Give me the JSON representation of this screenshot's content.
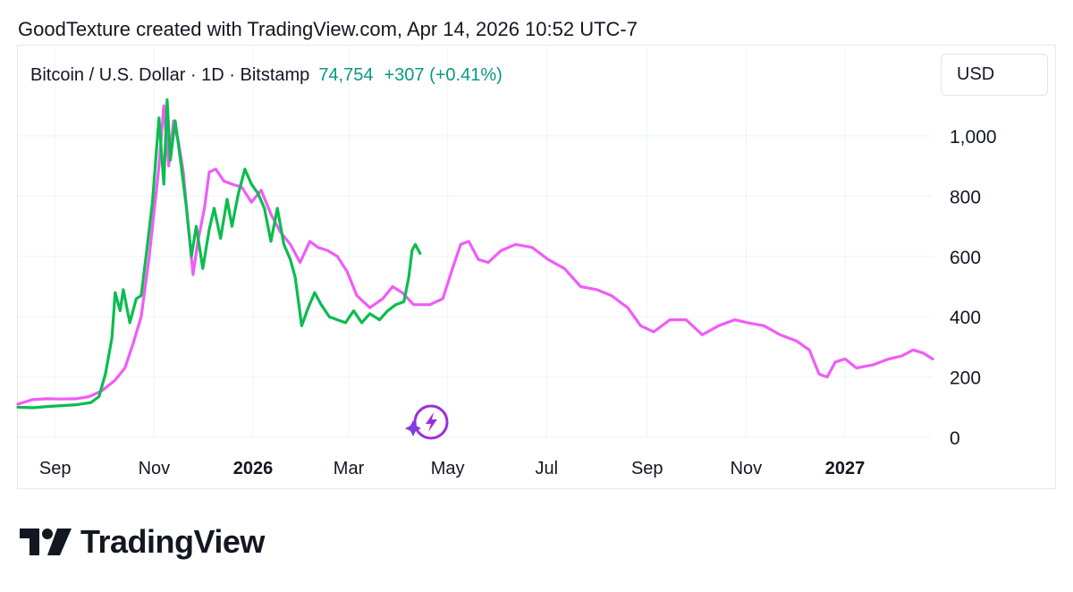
{
  "header": {
    "text": "GoodTexture created with TradingView.com, Apr 14, 2026 10:52 UTC-7"
  },
  "symbol": {
    "name": "Bitcoin / U.S. Dollar · 1D · Bitstamp",
    "price": "74,754",
    "change": "+307 (+0.41%)"
  },
  "currency_button": {
    "label": "USD"
  },
  "logo": {
    "text": "TradingView",
    "icon": "tradingview-logo-icon"
  },
  "colors": {
    "series_green": "#0bbd4e",
    "series_magenta": "#f05cf8",
    "up_text": "#089981",
    "grid": "#f0f3fa"
  },
  "chart_data": {
    "type": "line",
    "title": "",
    "xlabel": "",
    "ylabel": "",
    "ylim": [
      0,
      1150
    ],
    "yticks": [
      0,
      200,
      400,
      600,
      800,
      1000
    ],
    "ytick_labels": [
      "0",
      "200",
      "400",
      "600",
      "800",
      "1,000"
    ],
    "xlim": [
      "2025-08-09",
      "2027-02-24"
    ],
    "xticks": [
      {
        "date": "2025-09-01",
        "label": "Sep",
        "bold": false
      },
      {
        "date": "2025-11-01",
        "label": "Nov",
        "bold": false
      },
      {
        "date": "2026-01-01",
        "label": "2026",
        "bold": true
      },
      {
        "date": "2026-03-01",
        "label": "Mar",
        "bold": false
      },
      {
        "date": "2026-05-01",
        "label": "May",
        "bold": false
      },
      {
        "date": "2026-07-01",
        "label": "Jul",
        "bold": false
      },
      {
        "date": "2026-09-01",
        "label": "Sep",
        "bold": false
      },
      {
        "date": "2026-11-01",
        "label": "Nov",
        "bold": false
      },
      {
        "date": "2027-01-01",
        "label": "2027",
        "bold": true
      }
    ],
    "grid": true,
    "legend": "none",
    "series": [
      {
        "color": "#0bbd4e",
        "points": [
          [
            "2025-08-09",
            100
          ],
          [
            "2025-08-18",
            98
          ],
          [
            "2025-08-27",
            102
          ],
          [
            "2025-09-05",
            105
          ],
          [
            "2025-09-14",
            108
          ],
          [
            "2025-09-23",
            115
          ],
          [
            "2025-09-28",
            135
          ],
          [
            "2025-10-02",
            210
          ],
          [
            "2025-10-06",
            330
          ],
          [
            "2025-10-08",
            480
          ],
          [
            "2025-10-11",
            420
          ],
          [
            "2025-10-13",
            490
          ],
          [
            "2025-10-17",
            380
          ],
          [
            "2025-10-21",
            460
          ],
          [
            "2025-10-24",
            470
          ],
          [
            "2025-10-27",
            600
          ],
          [
            "2025-10-31",
            780
          ],
          [
            "2025-11-04",
            1060
          ],
          [
            "2025-11-07",
            840
          ],
          [
            "2025-11-09",
            1120
          ],
          [
            "2025-11-11",
            920
          ],
          [
            "2025-11-14",
            1050
          ],
          [
            "2025-11-17",
            930
          ],
          [
            "2025-11-21",
            760
          ],
          [
            "2025-11-24",
            600
          ],
          [
            "2025-11-27",
            700
          ],
          [
            "2025-12-01",
            560
          ],
          [
            "2025-12-05",
            690
          ],
          [
            "2025-12-08",
            760
          ],
          [
            "2025-12-12",
            660
          ],
          [
            "2025-12-16",
            790
          ],
          [
            "2025-12-19",
            700
          ],
          [
            "2025-12-23",
            810
          ],
          [
            "2025-12-27",
            890
          ],
          [
            "2025-12-31",
            840
          ],
          [
            "2026-01-04",
            810
          ],
          [
            "2026-01-08",
            760
          ],
          [
            "2026-01-12",
            650
          ],
          [
            "2026-01-16",
            760
          ],
          [
            "2026-01-20",
            640
          ],
          [
            "2026-01-24",
            590
          ],
          [
            "2026-01-27",
            530
          ],
          [
            "2026-01-31",
            370
          ],
          [
            "2026-02-04",
            430
          ],
          [
            "2026-02-08",
            480
          ],
          [
            "2026-02-12",
            440
          ],
          [
            "2026-02-17",
            400
          ],
          [
            "2026-02-22",
            390
          ],
          [
            "2026-02-27",
            380
          ],
          [
            "2026-03-04",
            420
          ],
          [
            "2026-03-09",
            380
          ],
          [
            "2026-03-14",
            410
          ],
          [
            "2026-03-20",
            390
          ],
          [
            "2026-03-25",
            420
          ],
          [
            "2026-03-30",
            440
          ],
          [
            "2026-04-04",
            450
          ],
          [
            "2026-04-07",
            530
          ],
          [
            "2026-04-09",
            620
          ],
          [
            "2026-04-11",
            640
          ],
          [
            "2026-04-14",
            610
          ]
        ]
      },
      {
        "color": "#f05cf8",
        "points": [
          [
            "2025-08-09",
            110
          ],
          [
            "2025-08-18",
            125
          ],
          [
            "2025-08-27",
            128
          ],
          [
            "2025-09-05",
            127
          ],
          [
            "2025-09-14",
            128
          ],
          [
            "2025-09-22",
            135
          ],
          [
            "2025-09-30",
            155
          ],
          [
            "2025-10-08",
            190
          ],
          [
            "2025-10-14",
            230
          ],
          [
            "2025-10-19",
            310
          ],
          [
            "2025-10-24",
            400
          ],
          [
            "2025-10-29",
            600
          ],
          [
            "2025-11-01",
            750
          ],
          [
            "2025-11-04",
            900
          ],
          [
            "2025-11-07",
            1100
          ],
          [
            "2025-11-10",
            900
          ],
          [
            "2025-11-13",
            1050
          ],
          [
            "2025-11-16",
            980
          ],
          [
            "2025-11-19",
            880
          ],
          [
            "2025-11-22",
            700
          ],
          [
            "2025-11-25",
            540
          ],
          [
            "2025-11-28",
            650
          ],
          [
            "2025-12-02",
            760
          ],
          [
            "2025-12-05",
            880
          ],
          [
            "2025-12-09",
            890
          ],
          [
            "2025-12-14",
            850
          ],
          [
            "2025-12-19",
            840
          ],
          [
            "2025-12-25",
            830
          ],
          [
            "2025-12-31",
            780
          ],
          [
            "2026-01-06",
            820
          ],
          [
            "2026-01-12",
            740
          ],
          [
            "2026-01-18",
            680
          ],
          [
            "2026-01-24",
            640
          ],
          [
            "2026-01-30",
            580
          ],
          [
            "2026-02-05",
            650
          ],
          [
            "2026-02-10",
            630
          ],
          [
            "2026-02-16",
            620
          ],
          [
            "2026-02-22",
            600
          ],
          [
            "2026-02-28",
            550
          ],
          [
            "2026-03-06",
            470
          ],
          [
            "2026-03-14",
            430
          ],
          [
            "2026-03-22",
            460
          ],
          [
            "2026-03-28",
            500
          ],
          [
            "2026-04-03",
            480
          ],
          [
            "2026-04-10",
            440
          ],
          [
            "2026-04-20",
            440
          ],
          [
            "2026-04-28",
            460
          ],
          [
            "2026-05-04",
            560
          ],
          [
            "2026-05-09",
            640
          ],
          [
            "2026-05-14",
            650
          ],
          [
            "2026-05-20",
            590
          ],
          [
            "2026-05-26",
            580
          ],
          [
            "2026-06-03",
            620
          ],
          [
            "2026-06-12",
            640
          ],
          [
            "2026-06-22",
            630
          ],
          [
            "2026-07-02",
            590
          ],
          [
            "2026-07-12",
            560
          ],
          [
            "2026-07-22",
            500
          ],
          [
            "2026-08-01",
            490
          ],
          [
            "2026-08-10",
            470
          ],
          [
            "2026-08-20",
            430
          ],
          [
            "2026-08-28",
            370
          ],
          [
            "2026-09-05",
            350
          ],
          [
            "2026-09-15",
            390
          ],
          [
            "2026-09-25",
            390
          ],
          [
            "2026-10-05",
            340
          ],
          [
            "2026-10-15",
            370
          ],
          [
            "2026-10-25",
            390
          ],
          [
            "2026-11-02",
            380
          ],
          [
            "2026-11-12",
            370
          ],
          [
            "2026-11-22",
            340
          ],
          [
            "2026-12-02",
            320
          ],
          [
            "2026-12-10",
            290
          ],
          [
            "2026-12-16",
            210
          ],
          [
            "2026-12-21",
            200
          ],
          [
            "2026-12-26",
            250
          ],
          [
            "2027-01-01",
            260
          ],
          [
            "2027-01-08",
            230
          ],
          [
            "2027-01-18",
            240
          ],
          [
            "2027-01-28",
            260
          ],
          [
            "2027-02-05",
            270
          ],
          [
            "2027-02-12",
            290
          ],
          [
            "2027-02-18",
            280
          ],
          [
            "2027-02-24",
            260
          ]
        ]
      }
    ],
    "annotation_icon": "lightning-sparkle-icon"
  }
}
